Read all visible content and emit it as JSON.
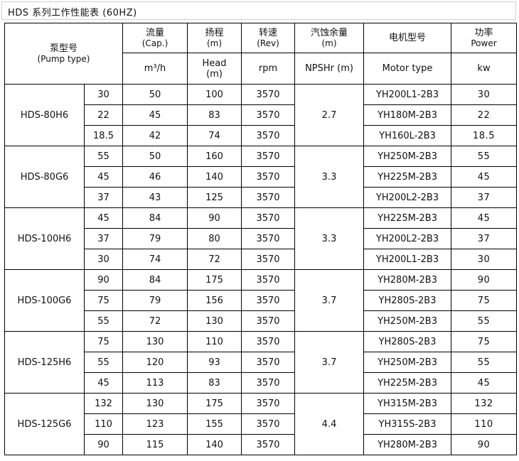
{
  "title": "HDS 系列工作性能表 (60HZ)",
  "headers": {
    "pump_type_cn": "泵型号",
    "pump_type_en": "(Pump type)",
    "flow_cn": "流量",
    "flow_en": "(Cap.)",
    "flow_unit": "m³/h",
    "head_cn": "扬程",
    "head_en": "(m)",
    "head_unit_a": "Head",
    "head_unit_b": "(m)",
    "speed_cn": "转速",
    "speed_en": "(Rev)",
    "speed_unit": "rpm",
    "npsh_cn": "汽蚀余量",
    "npsh_en": "(m)",
    "npsh_unit": "NPSHr (m)",
    "motor_cn": "电机型号",
    "motor_unit": "Motor type",
    "power_cn": "功率",
    "power_en": "Power",
    "power_unit": "kw"
  },
  "groups": [
    {
      "model": "HDS-80H6",
      "npsh": "2.7",
      "rows": [
        {
          "kw_left": "30",
          "flow": "50",
          "head": "100",
          "rpm": "3570",
          "motor": "YH200L1-2B3",
          "power": "30"
        },
        {
          "kw_left": "22",
          "flow": "45",
          "head": "83",
          "rpm": "3570",
          "motor": "YH180M-2B3",
          "power": "22"
        },
        {
          "kw_left": "18.5",
          "flow": "42",
          "head": "74",
          "rpm": "3570",
          "motor": "YH160L-2B3",
          "power": "18.5"
        }
      ]
    },
    {
      "model": "HDS-80G6",
      "npsh": "3.3",
      "rows": [
        {
          "kw_left": "55",
          "flow": "50",
          "head": "160",
          "rpm": "3570",
          "motor": "YH250M-2B3",
          "power": "55"
        },
        {
          "kw_left": "45",
          "flow": "46",
          "head": "140",
          "rpm": "3570",
          "motor": "YH225M-2B3",
          "power": "45"
        },
        {
          "kw_left": "37",
          "flow": "43",
          "head": "125",
          "rpm": "3570",
          "motor": "YH200L2-2B3",
          "power": "37"
        }
      ]
    },
    {
      "model": "HDS-100H6",
      "npsh": "3.3",
      "rows": [
        {
          "kw_left": "45",
          "flow": "84",
          "head": "90",
          "rpm": "3570",
          "motor": "YH225M-2B3",
          "power": "45"
        },
        {
          "kw_left": "37",
          "flow": "79",
          "head": "80",
          "rpm": "3570",
          "motor": "YH200L2-2B3",
          "power": "37"
        },
        {
          "kw_left": "30",
          "flow": "74",
          "head": "72",
          "rpm": "3570",
          "motor": "YH200L1-2B3",
          "power": "30"
        }
      ]
    },
    {
      "model": "HDS-100G6",
      "npsh": "3.7",
      "rows": [
        {
          "kw_left": "90",
          "flow": "84",
          "head": "175",
          "rpm": "3570",
          "motor": "YH280M-2B3",
          "power": "90"
        },
        {
          "kw_left": "75",
          "flow": "79",
          "head": "156",
          "rpm": "3570",
          "motor": "YH280S-2B3",
          "power": "75"
        },
        {
          "kw_left": "55",
          "flow": "72",
          "head": "130",
          "rpm": "3570",
          "motor": "YH250M-2B3",
          "power": "55"
        }
      ]
    },
    {
      "model": "HDS-125H6",
      "npsh": "3.7",
      "rows": [
        {
          "kw_left": "75",
          "flow": "130",
          "head": "110",
          "rpm": "3570",
          "motor": "YH280S-2B3",
          "power": "75"
        },
        {
          "kw_left": "55",
          "flow": "120",
          "head": "93",
          "rpm": "3570",
          "motor": "YH250M-2B3",
          "power": "55"
        },
        {
          "kw_left": "45",
          "flow": "113",
          "head": "83",
          "rpm": "3570",
          "motor": "YH225M-2B3",
          "power": "45"
        }
      ]
    },
    {
      "model": "HDS-125G6",
      "npsh": "4.4",
      "rows": [
        {
          "kw_left": "132",
          "flow": "130",
          "head": "175",
          "rpm": "3570",
          "motor": "YH315M-2B3",
          "power": "132"
        },
        {
          "kw_left": "110",
          "flow": "123",
          "head": "155",
          "rpm": "3570",
          "motor": "YH315S-2B3",
          "power": "110"
        },
        {
          "kw_left": "90",
          "flow": "115",
          "head": "140",
          "rpm": "3570",
          "motor": "YH280M-2B3",
          "power": "90"
        }
      ]
    }
  ]
}
